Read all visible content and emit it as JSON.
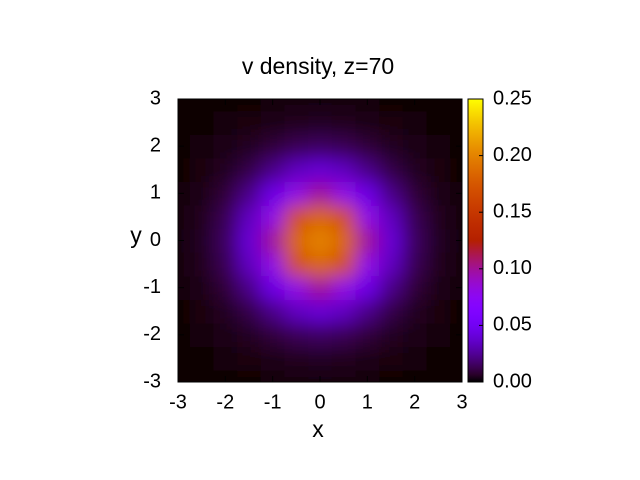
{
  "chart_data": {
    "type": "heatmap",
    "title": "v density, z=70",
    "x_label": "x",
    "y_label": "y",
    "x": [
      -3,
      -2.5,
      -2,
      -1.5,
      -1,
      -0.5,
      0,
      0.5,
      1,
      1.5,
      2,
      2.5,
      3
    ],
    "y": [
      -3,
      -2.5,
      -2,
      -1.5,
      -1,
      -0.5,
      0,
      0.5,
      1,
      1.5,
      2,
      2.5,
      3
    ],
    "z": [
      [
        0.0004,
        0.0006,
        0.0008,
        0.001,
        0.0015,
        0.002,
        0.002,
        0.002,
        0.0015,
        0.001,
        0.0008,
        0.0006,
        0.0004
      ],
      [
        0.0006,
        0.001,
        0.0015,
        0.0025,
        0.0035,
        0.0045,
        0.005,
        0.0045,
        0.0035,
        0.0025,
        0.0015,
        0.001,
        0.0006
      ],
      [
        0.0008,
        0.0015,
        0.003,
        0.005,
        0.009,
        0.013,
        0.015,
        0.013,
        0.009,
        0.005,
        0.003,
        0.0015,
        0.0008
      ],
      [
        0.001,
        0.0025,
        0.005,
        0.011,
        0.022,
        0.034,
        0.04,
        0.034,
        0.022,
        0.011,
        0.005,
        0.0025,
        0.001
      ],
      [
        0.0015,
        0.0035,
        0.009,
        0.022,
        0.045,
        0.08,
        0.1,
        0.08,
        0.045,
        0.022,
        0.009,
        0.0035,
        0.0015
      ],
      [
        0.002,
        0.0045,
        0.013,
        0.034,
        0.08,
        0.17,
        0.185,
        0.17,
        0.08,
        0.034,
        0.013,
        0.0045,
        0.002
      ],
      [
        0.002,
        0.005,
        0.015,
        0.04,
        0.1,
        0.185,
        0.2,
        0.185,
        0.1,
        0.04,
        0.015,
        0.005,
        0.002
      ],
      [
        0.002,
        0.0045,
        0.013,
        0.034,
        0.08,
        0.17,
        0.185,
        0.17,
        0.08,
        0.034,
        0.013,
        0.0045,
        0.002
      ],
      [
        0.0015,
        0.0035,
        0.009,
        0.022,
        0.045,
        0.08,
        0.1,
        0.08,
        0.045,
        0.022,
        0.009,
        0.0035,
        0.0015
      ],
      [
        0.001,
        0.0025,
        0.005,
        0.011,
        0.022,
        0.034,
        0.04,
        0.034,
        0.022,
        0.011,
        0.005,
        0.0025,
        0.001
      ],
      [
        0.0008,
        0.0015,
        0.003,
        0.005,
        0.009,
        0.013,
        0.015,
        0.013,
        0.009,
        0.005,
        0.003,
        0.0015,
        0.0008
      ],
      [
        0.0006,
        0.001,
        0.0015,
        0.0025,
        0.0035,
        0.0045,
        0.005,
        0.0045,
        0.0035,
        0.0025,
        0.0015,
        0.001,
        0.0006
      ],
      [
        0.0004,
        0.0006,
        0.0008,
        0.001,
        0.0015,
        0.002,
        0.002,
        0.002,
        0.0015,
        0.001,
        0.0008,
        0.0006,
        0.0004
      ]
    ],
    "xlim": [
      -3,
      3
    ],
    "ylim": [
      -3,
      3
    ],
    "xticks": [
      -3,
      -2,
      -1,
      0,
      1,
      2,
      3
    ],
    "yticks": [
      -3,
      -2,
      -1,
      0,
      1,
      2,
      3
    ],
    "clim": [
      0,
      0.25
    ],
    "cticks": [
      {
        "value": 0,
        "label": "0.00"
      },
      {
        "value": 0.05,
        "label": "0.05"
      },
      {
        "value": 0.1,
        "label": "0.10"
      },
      {
        "value": 0.15,
        "label": "0.15"
      },
      {
        "value": 0.2,
        "label": "0.20"
      },
      {
        "value": 0.25,
        "label": "0.25"
      }
    ]
  }
}
